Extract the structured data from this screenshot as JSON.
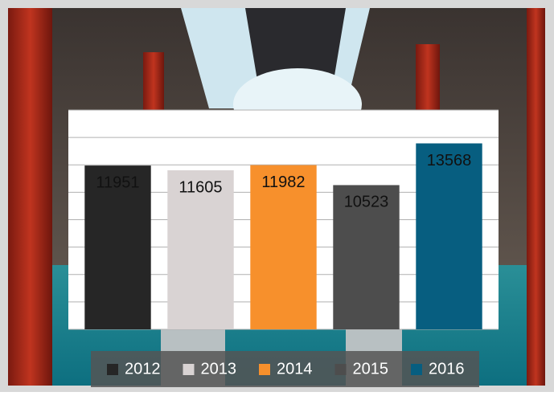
{
  "chart_data": {
    "type": "bar",
    "series": [
      {
        "name": "2012",
        "color": "#262626",
        "values": [
          11951
        ]
      },
      {
        "name": "2013",
        "color": "#d9d3d3",
        "values": [
          11605
        ]
      },
      {
        "name": "2014",
        "color": "#f7902c",
        "values": [
          11982
        ]
      },
      {
        "name": "2015",
        "color": "#4d4d4d",
        "values": [
          10523
        ]
      },
      {
        "name": "2016",
        "color": "#075e80",
        "values": [
          13568
        ]
      }
    ],
    "ylim": [
      0,
      16000
    ],
    "yticks": [
      0,
      2000,
      4000,
      6000,
      8000,
      10000,
      12000,
      14000,
      16000
    ],
    "grid": true,
    "legend": "bottom"
  }
}
